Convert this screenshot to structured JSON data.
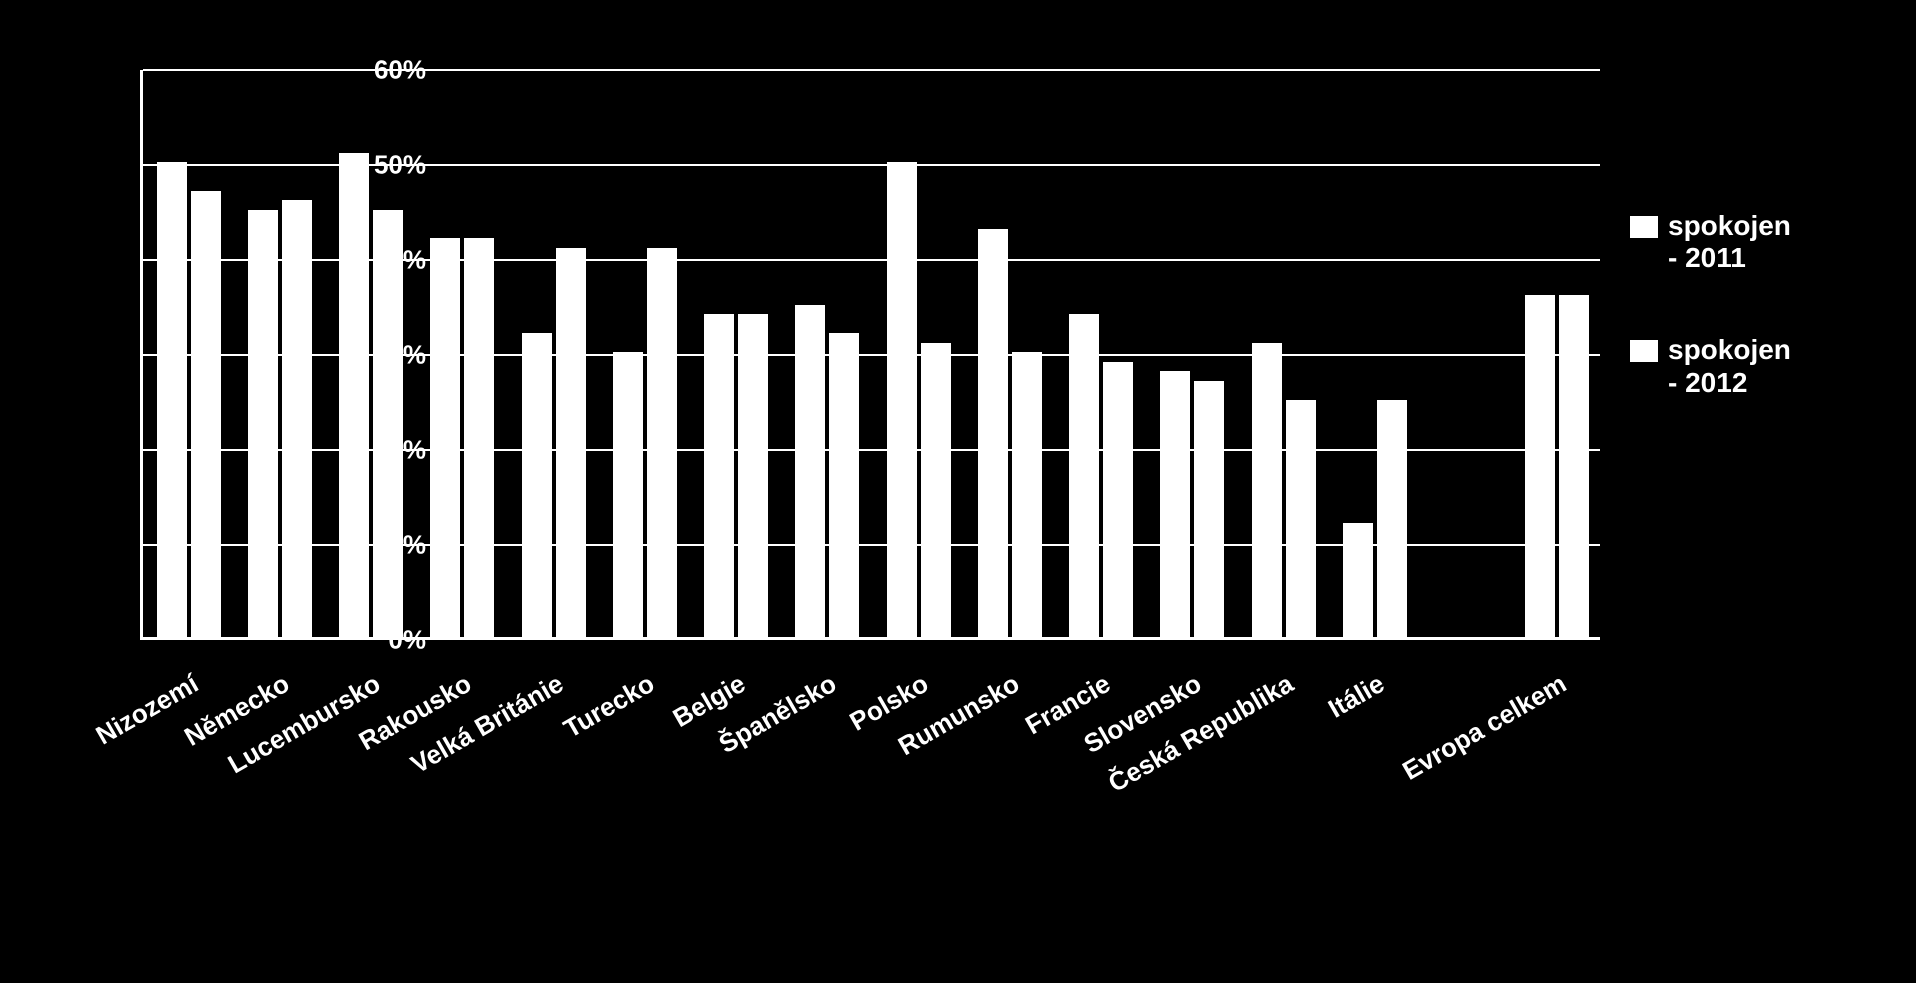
{
  "chart": {
    "type": "bar",
    "background_color": "#000000",
    "bar_color": "#ffffff",
    "axis_color": "#ffffff",
    "grid_color": "#ffffff",
    "text_color": "#ffffff",
    "font_family": "Arial",
    "axis_label_fontsize": 26,
    "axis_label_fontweight": "bold",
    "category_label_fontsize": 26,
    "category_label_fontweight": "bold",
    "category_label_rotation_deg": -30,
    "legend_fontsize": 28,
    "legend_fontweight": "bold",
    "ylim": [
      0,
      60
    ],
    "ytick_step": 10,
    "ytick_suffix": "%",
    "bar_group_gap_ratio": 0.3,
    "bar_inner_gap_ratio": 0.06,
    "categories": [
      "Nizozemí",
      "Německo",
      "Lucembursko",
      "Rakousko",
      "Velká Británie",
      "Turecko",
      "Belgie",
      "Španělsko",
      "Polsko",
      "Rumunsko",
      "Francie",
      "Slovensko",
      "Česká Republika",
      "Itálie",
      "",
      "Evropa celkem"
    ],
    "series": [
      {
        "name": "spokojen - 2011",
        "legend_line1": "spokojen",
        "legend_line2": "- 2011",
        "values": [
          50,
          45,
          51,
          42,
          32,
          30,
          34,
          35,
          50,
          43,
          34,
          28,
          31,
          12,
          null,
          36
        ]
      },
      {
        "name": "spokojen - 2012",
        "legend_line1": "spokojen",
        "legend_line2": "- 2012",
        "values": [
          47,
          46,
          45,
          42,
          41,
          41,
          34,
          32,
          31,
          30,
          29,
          27,
          25,
          25,
          null,
          36
        ]
      }
    ]
  }
}
